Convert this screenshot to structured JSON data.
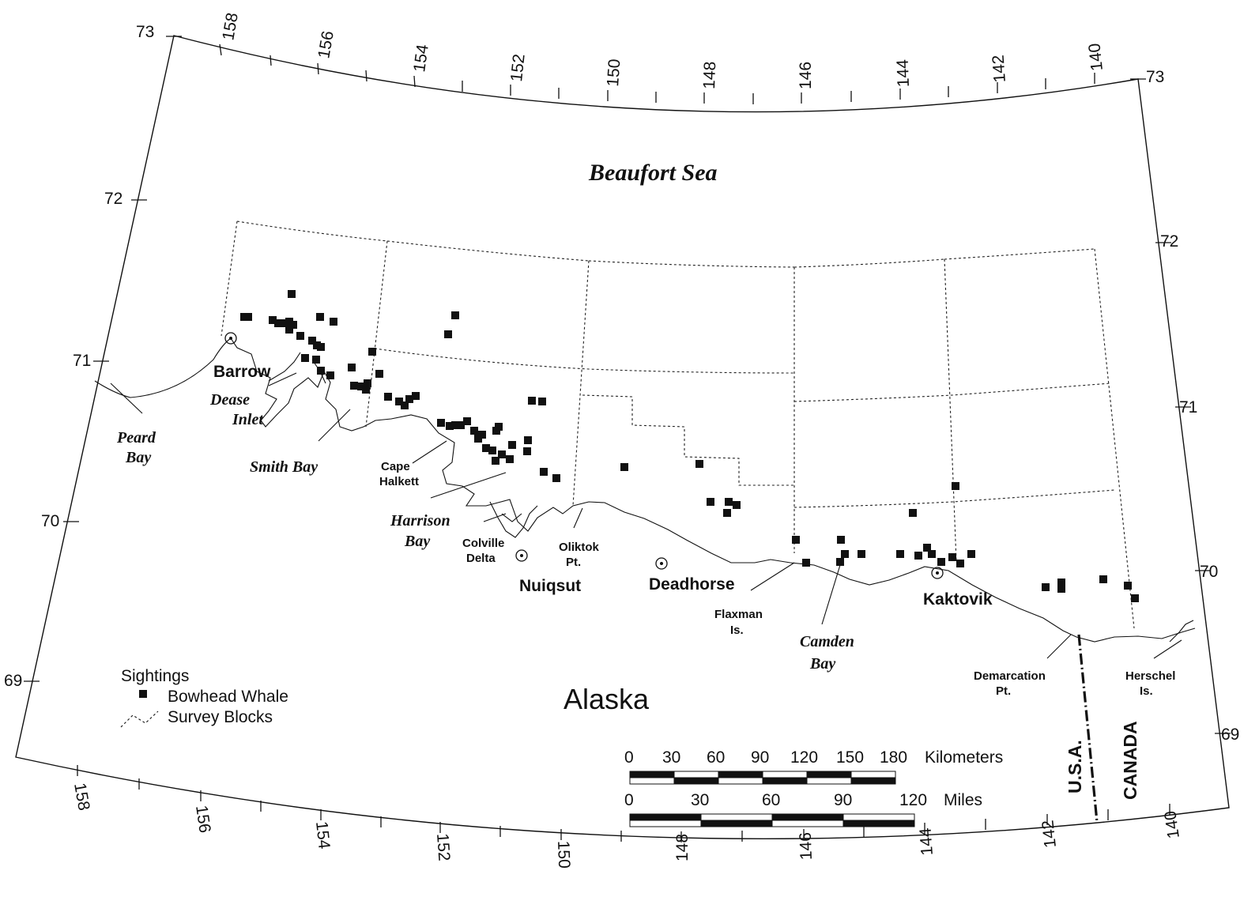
{
  "sea_name": "Beaufort Sea",
  "land_name": "Alaska",
  "country_labels": [
    "U.S.A.",
    "CANADA"
  ],
  "longitude_labels": [
    "158",
    "156",
    "154",
    "152",
    "150",
    "148",
    "146",
    "144",
    "142",
    "140"
  ],
  "latitude_labels_left": [
    "73",
    "72",
    "71",
    "70",
    "69"
  ],
  "latitude_labels_right": [
    "73",
    "72",
    "71",
    "70",
    "69"
  ],
  "towns": [
    {
      "name": "Barrow"
    },
    {
      "name": "Nuiqsut"
    },
    {
      "name": "Deadhorse"
    },
    {
      "name": "Kaktovik"
    }
  ],
  "features_italic": [
    "Dease",
    "Inlet",
    "Peard",
    "Bay",
    "Smith Bay",
    "Harrison",
    "Bay",
    "Camden",
    "Bay"
  ],
  "features_plain": [
    "Cape",
    "Halkett",
    "Colville",
    "Delta",
    "Oliktok",
    "Pt.",
    "Flaxman",
    "Is.",
    "Demarcation",
    "Pt.",
    "Herschel",
    "Is."
  ],
  "legend": {
    "title": "Sightings",
    "items": [
      {
        "label": "Bowhead Whale",
        "icon": "filled-square-icon"
      },
      {
        "label": "Survey Blocks",
        "icon": "dashed-line-icon"
      }
    ]
  },
  "scale_km": {
    "ticks": [
      "0",
      "30",
      "60",
      "90",
      "120",
      "150",
      "180"
    ],
    "unit": "Kilometers"
  },
  "scale_mi": {
    "ticks": [
      "0",
      "30",
      "60",
      "90",
      "120"
    ],
    "unit": "Miles"
  },
  "colors": {
    "ink": "#111111",
    "paper": "#ffffff"
  }
}
